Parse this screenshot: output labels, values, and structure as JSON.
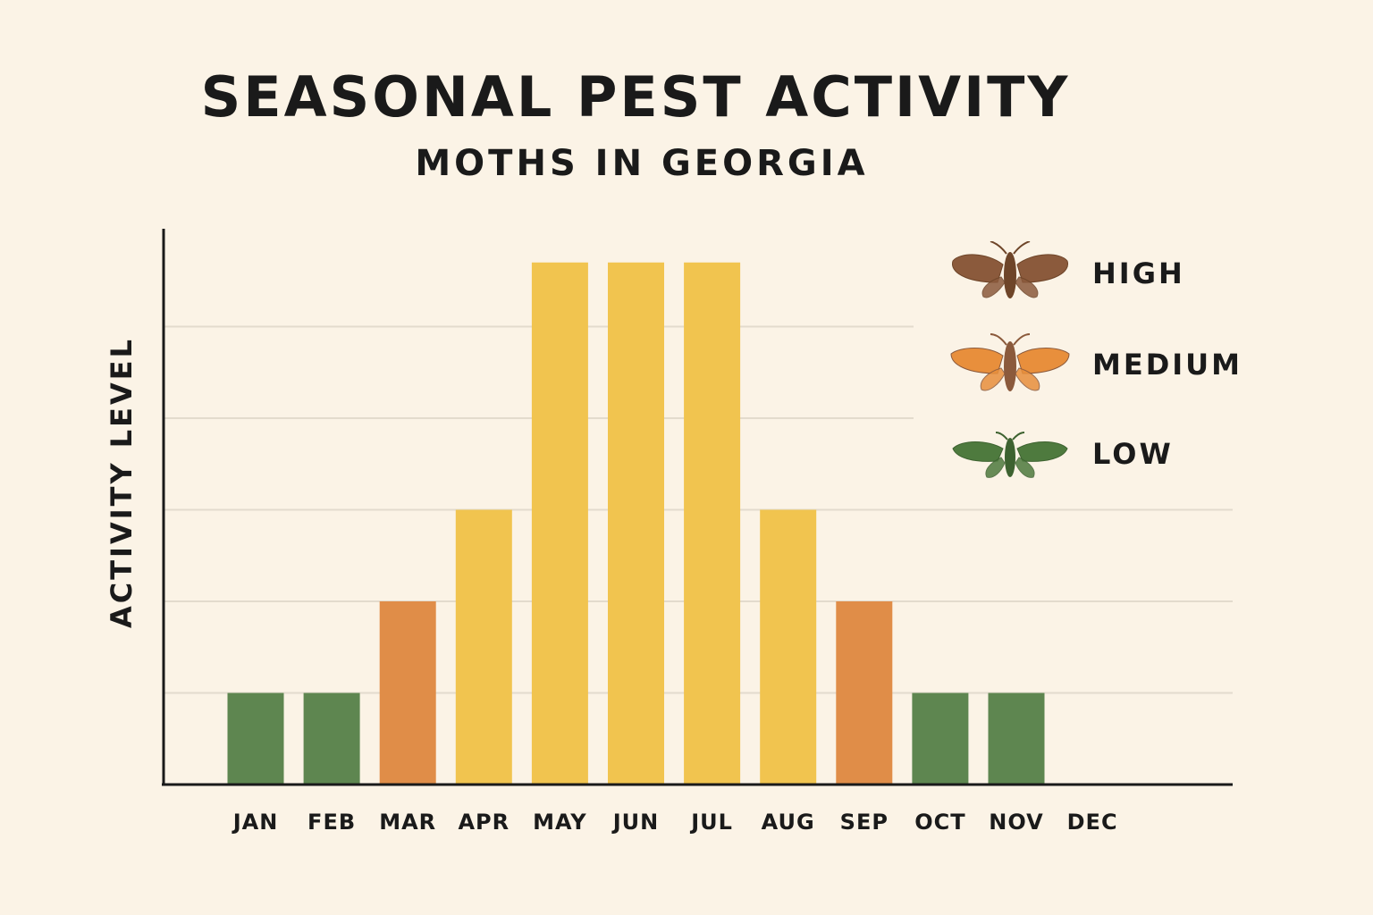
{
  "title": "SEASONAL PEST ACTIVITY",
  "subtitle": "MOTHS IN GEORGIA",
  "chart_data": {
    "type": "bar",
    "title": "SEASONAL PEST ACTIVITY",
    "subtitle": "MOTHS IN GEORGIA",
    "xlabel": "",
    "ylabel": "ACTIVITY LEVEL",
    "categories": [
      "JAN",
      "FEB",
      "MAR",
      "APR",
      "MAY",
      "JUN",
      "JUL",
      "AUG",
      "SEP",
      "OCT",
      "NOV",
      "DEC"
    ],
    "values": [
      1,
      1,
      2,
      3,
      5.7,
      5.7,
      5.7,
      3,
      2,
      1,
      1,
      0
    ],
    "levels": [
      "LOW",
      "LOW",
      "MEDIUM",
      "HIGH",
      "HIGH",
      "HIGH",
      "HIGH",
      "HIGH",
      "MEDIUM",
      "LOW",
      "LOW",
      ""
    ],
    "bar_colors": [
      "#5e8650",
      "#5e8650",
      "#e08d48",
      "#f1c44f",
      "#f1c44f",
      "#f1c44f",
      "#f1c44f",
      "#f1c44f",
      "#e08d48",
      "#5e8650",
      "#5e8650",
      ""
    ],
    "ylim": [
      0,
      6
    ],
    "grid": true,
    "legend_position": "top-right"
  },
  "legend": {
    "items": [
      {
        "label": "HIGH",
        "wing_color": "#8b5a3c",
        "body_color": "#6e4529"
      },
      {
        "label": "MEDIUM",
        "wing_color": "#e88f3c",
        "body_color": "#8b5a3c"
      },
      {
        "label": "LOW",
        "wing_color": "#4e7a3e",
        "body_color": "#3d6230"
      }
    ]
  },
  "colors": {
    "background": "#fbf3e6",
    "axis": "#1a1a1a",
    "grid": "#e3dbcd",
    "text": "#1a1a1a"
  }
}
